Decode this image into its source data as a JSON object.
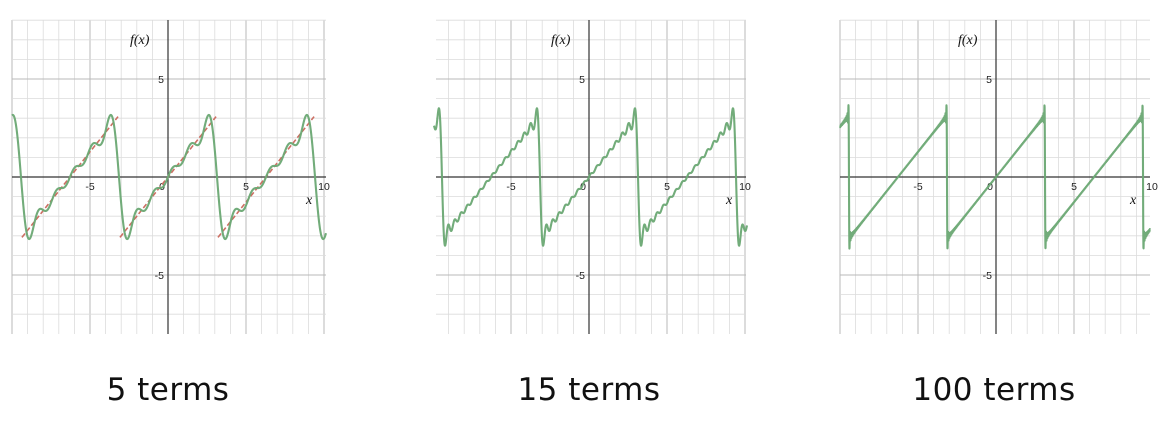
{
  "chart_data": [
    {
      "type": "line",
      "title": "5 terms",
      "terms": 5,
      "xlabel": "x",
      "ylabel": "f(x)",
      "xlim": [
        -10,
        10
      ],
      "ylim": [
        -10,
        10
      ],
      "grid": true,
      "x_tick_labels": [
        "-5",
        "0",
        "5",
        "10"
      ],
      "y_tick_labels": [
        "5",
        "-5"
      ],
      "period": 6.28318,
      "series": [
        {
          "color": "#6aa873",
          "kind": "fourier partial sum"
        },
        {
          "color": "#cc6f63",
          "kind": "target f(x) = x, dashed, periodic"
        }
      ]
    },
    {
      "type": "line",
      "title": "15 terms",
      "terms": 15,
      "xlabel": "x",
      "ylabel": "f(x)",
      "xlim": [
        -10,
        10
      ],
      "ylim": [
        -10,
        10
      ],
      "grid": true,
      "x_tick_labels": [
        "-5",
        "0",
        "5",
        "10"
      ],
      "y_tick_labels": [
        "5",
        "-5"
      ],
      "period": 6.28318,
      "series": [
        {
          "color": "#6aa873",
          "kind": "fourier partial sum"
        }
      ]
    },
    {
      "type": "line",
      "title": "100 terms",
      "terms": 100,
      "xlabel": "x",
      "ylabel": "f(x)",
      "xlim": [
        -10,
        10
      ],
      "ylim": [
        -10,
        10
      ],
      "grid": true,
      "x_tick_labels": [
        "-5",
        "0",
        "5",
        "10"
      ],
      "y_tick_labels": [
        "5",
        "-5"
      ],
      "period": 6.28318,
      "series": [
        {
          "color": "#6aa873",
          "kind": "fourier partial sum"
        }
      ]
    }
  ],
  "captions": [
    "5 terms",
    "15 terms",
    "100 terms"
  ]
}
